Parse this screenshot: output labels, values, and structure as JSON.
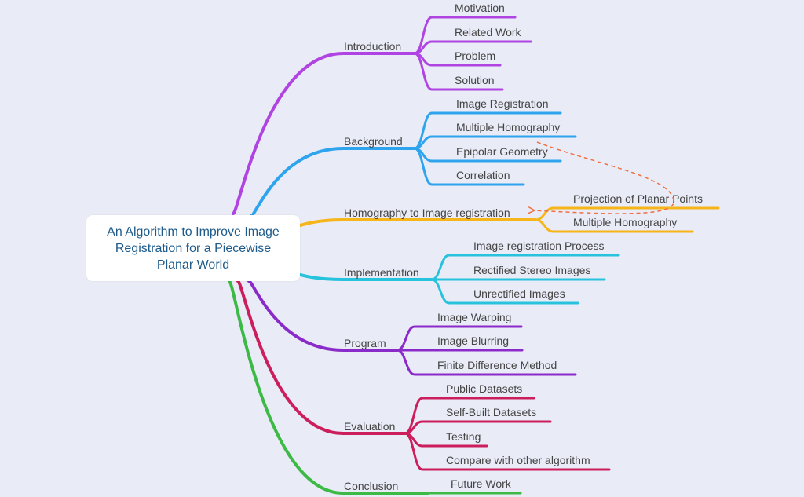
{
  "central": {
    "title": "An Algorithm to Improve Image Registration for a Piecewise Planar World"
  },
  "branches": [
    {
      "key": "introduction",
      "label": "Introduction",
      "color": "#b044e2",
      "children": [
        "Motivation",
        "Related Work",
        "Problem",
        "Solution"
      ]
    },
    {
      "key": "background",
      "label": "Background",
      "color": "#2fa4ee",
      "children": [
        "Image Registration",
        "Multiple Homography",
        "Epipolar Geometry",
        "Correlation"
      ]
    },
    {
      "key": "homography",
      "label": "Homography to Image registration",
      "color": "#f6b619",
      "children": [
        "Projection of Planar Points",
        "Multiple Homography"
      ]
    },
    {
      "key": "implementation",
      "label": "Implementation",
      "color": "#27c3dc",
      "children": [
        "Image registration Process",
        "Rectified Stereo Images",
        "Unrectified Images"
      ]
    },
    {
      "key": "program",
      "label": "Program",
      "color": "#8a2bc9",
      "children": [
        "Image Warping",
        "Image Blurring",
        "Finite Difference Method"
      ]
    },
    {
      "key": "evaluation",
      "label": "Evaluation",
      "color": "#cc1e5c",
      "children": [
        "Public Datasets",
        "Self-Built Datasets",
        "Testing",
        "Compare with other algorithm"
      ]
    },
    {
      "key": "conclusion",
      "label": "Conclusion",
      "color": "#3dba46",
      "children": [
        "Future Work"
      ]
    }
  ],
  "relationship": {
    "from": "Multiple Homography",
    "to": "Homography to Image registration",
    "color": "#f07040"
  },
  "colors": {
    "background": "#e9ebf7",
    "text": "#444444",
    "central_text": "#1e5b8a"
  }
}
